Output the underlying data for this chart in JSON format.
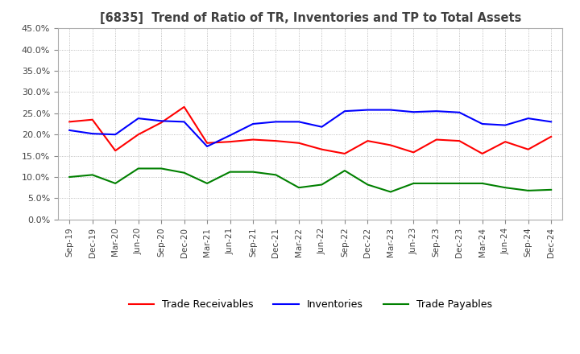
{
  "title": "[6835]  Trend of Ratio of TR, Inventories and TP to Total Assets",
  "x_labels": [
    "Sep-19",
    "Dec-19",
    "Mar-20",
    "Jun-20",
    "Sep-20",
    "Dec-20",
    "Mar-21",
    "Jun-21",
    "Sep-21",
    "Dec-21",
    "Mar-22",
    "Jun-22",
    "Sep-22",
    "Dec-22",
    "Mar-23",
    "Jun-23",
    "Sep-23",
    "Dec-23",
    "Mar-24",
    "Jun-24",
    "Sep-24",
    "Dec-24"
  ],
  "trade_receivables": [
    0.23,
    0.235,
    0.162,
    0.2,
    0.228,
    0.265,
    0.18,
    0.183,
    0.188,
    0.185,
    0.18,
    0.165,
    0.155,
    0.185,
    0.175,
    0.158,
    0.188,
    0.185,
    0.155,
    0.183,
    0.165,
    0.195
  ],
  "inventories": [
    0.21,
    0.202,
    0.2,
    0.238,
    0.232,
    0.23,
    0.172,
    0.198,
    0.225,
    0.23,
    0.23,
    0.218,
    0.255,
    0.258,
    0.258,
    0.253,
    0.255,
    0.252,
    0.225,
    0.222,
    0.238,
    0.23
  ],
  "trade_payables": [
    0.1,
    0.105,
    0.085,
    0.12,
    0.12,
    0.11,
    0.085,
    0.112,
    0.112,
    0.105,
    0.075,
    0.082,
    0.115,
    0.082,
    0.065,
    0.085,
    0.085,
    0.085,
    0.085,
    0.075,
    0.068,
    0.07
  ],
  "ylim": [
    0.0,
    0.45
  ],
  "yticks": [
    0.0,
    0.05,
    0.1,
    0.15,
    0.2,
    0.25,
    0.3,
    0.35,
    0.4,
    0.45
  ],
  "tr_color": "#FF0000",
  "inv_color": "#0000FF",
  "tp_color": "#008000",
  "legend_labels": [
    "Trade Receivables",
    "Inventories",
    "Trade Payables"
  ],
  "grid_color": "#AAAAAA",
  "background_color": "#FFFFFF",
  "title_color": "#404040"
}
